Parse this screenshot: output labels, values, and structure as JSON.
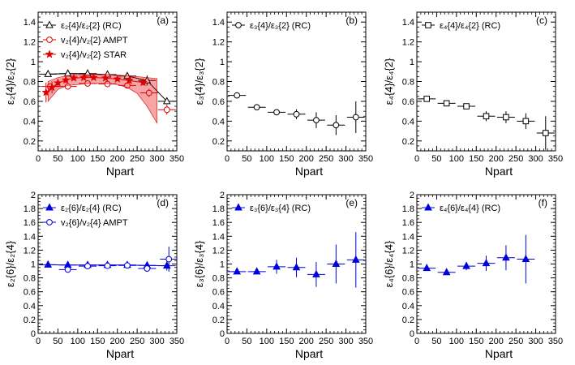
{
  "figure": {
    "background": "#ffffff"
  },
  "chart_data": [
    {
      "id": "a",
      "type": "scatter",
      "panel_label": "(a)",
      "xlabel": "Npart",
      "ylabel": "ε₂{4}/ε₂{2}",
      "xlim": [
        0,
        350
      ],
      "ylim": [
        0.1,
        1.5
      ],
      "xticks": [
        0,
        50,
        100,
        150,
        200,
        250,
        300,
        350
      ],
      "yticks": [
        0.2,
        0.4,
        0.6,
        0.8,
        1.0,
        1.2,
        1.4
      ],
      "ytick_labels": [
        "0.2",
        "0.4",
        "0.6",
        "0.8",
        "1",
        "1.2",
        "1.4"
      ],
      "grid": false,
      "legend_position": "top-left",
      "series": [
        {
          "name": "ε₂{4}/ε₂{2} (RC)",
          "color": "#000000",
          "marker": "triangle-open",
          "line": true,
          "x": [
            25,
            75,
            125,
            175,
            225,
            275,
            325
          ],
          "y": [
            0.875,
            0.88,
            0.88,
            0.87,
            0.855,
            0.81,
            0.6
          ],
          "yerr": [
            0.02,
            0.015,
            0.015,
            0.02,
            0.03,
            0.05,
            0.03
          ]
        },
        {
          "name": "v₂{4}/v₂{2}  AMPT",
          "color": "#e00000",
          "marker": "circle-open",
          "line": false,
          "x": [
            30,
            75,
            125,
            175,
            225,
            280,
            325
          ],
          "y": [
            0.75,
            0.75,
            0.78,
            0.775,
            0.76,
            0.685,
            0.515
          ],
          "yerr": [
            0.02,
            0.02,
            0.02,
            0.02,
            0.02,
            0.04,
            0.05
          ]
        },
        {
          "name": "v₂{4}/v₂{2}  STAR",
          "color": "#e00000",
          "marker": "star",
          "line": true,
          "x": [
            20,
            35,
            50,
            70,
            90,
            115,
            140,
            170,
            200,
            230,
            265
          ],
          "y": [
            0.69,
            0.74,
            0.785,
            0.815,
            0.835,
            0.84,
            0.84,
            0.835,
            0.825,
            0.81,
            0.79
          ],
          "yerr": [
            0.1,
            0.06,
            0.04,
            0.03,
            0.02,
            0.02,
            0.02,
            0.02,
            0.02,
            0.02,
            0.03
          ],
          "sys_band": {
            "x": [
              25,
              50,
              75,
              100,
              125,
              150,
              175,
              200,
              225,
              250,
              275,
              300
            ],
            "low": [
              0.6,
              0.72,
              0.76,
              0.77,
              0.78,
              0.78,
              0.78,
              0.77,
              0.74,
              0.68,
              0.55,
              0.38
            ],
            "high": [
              0.8,
              0.84,
              0.86,
              0.87,
              0.87,
              0.87,
              0.87,
              0.86,
              0.86,
              0.85,
              0.84,
              0.83
            ]
          }
        }
      ]
    },
    {
      "id": "b",
      "type": "scatter",
      "panel_label": "(b)",
      "xlabel": "Npart",
      "ylabel": "ε₃{4}/ε₃{2}",
      "xlim": [
        0,
        350
      ],
      "ylim": [
        0.1,
        1.5
      ],
      "xticks": [
        0,
        50,
        100,
        150,
        200,
        250,
        300,
        350
      ],
      "yticks": [
        0.2,
        0.4,
        0.6,
        0.8,
        1.0,
        1.2,
        1.4
      ],
      "ytick_labels": [
        "0.2",
        "0.4",
        "0.6",
        "0.8",
        "1",
        "1.2",
        "1.4"
      ],
      "grid": false,
      "legend_position": "top-left",
      "series": [
        {
          "name": "ε₃{4}/ε₃{2} (RC)",
          "color": "#000000",
          "marker": "circle-open",
          "line": false,
          "x": [
            25,
            75,
            125,
            175,
            225,
            275,
            325
          ],
          "y": [
            0.66,
            0.54,
            0.49,
            0.47,
            0.41,
            0.36,
            0.44
          ],
          "yerr": [
            0.02,
            0.02,
            0.03,
            0.05,
            0.08,
            0.1,
            0.16
          ]
        }
      ]
    },
    {
      "id": "c",
      "type": "scatter",
      "panel_label": "(c)",
      "xlabel": "Npart",
      "ylabel": "ε₄{4}/ε₄{2}",
      "xlim": [
        0,
        350
      ],
      "ylim": [
        0.1,
        1.5
      ],
      "xticks": [
        0,
        50,
        100,
        150,
        200,
        250,
        300,
        350
      ],
      "yticks": [
        0.2,
        0.4,
        0.6,
        0.8,
        1.0,
        1.2,
        1.4
      ],
      "ytick_labels": [
        "0.2",
        "0.4",
        "0.6",
        "0.8",
        "1",
        "1.2",
        "1.4"
      ],
      "grid": false,
      "legend_position": "top-left",
      "series": [
        {
          "name": "ε₄{4}/ε₄{2} (RC)",
          "color": "#000000",
          "marker": "square-open",
          "line": false,
          "x": [
            25,
            75,
            125,
            175,
            225,
            275,
            325
          ],
          "y": [
            0.625,
            0.58,
            0.55,
            0.45,
            0.44,
            0.4,
            0.28
          ],
          "yerr": [
            0.02,
            0.02,
            0.02,
            0.05,
            0.06,
            0.08,
            0.17
          ]
        }
      ]
    },
    {
      "id": "d",
      "type": "scatter",
      "panel_label": "(d)",
      "xlabel": "Npart",
      "ylabel": "ε₂{6}/ε₂{4}",
      "xlim": [
        0,
        350
      ],
      "ylim": [
        0,
        2
      ],
      "xticks": [
        0,
        50,
        100,
        150,
        200,
        250,
        300,
        350
      ],
      "yticks": [
        0,
        0.2,
        0.4,
        0.6,
        0.8,
        1.0,
        1.2,
        1.4,
        1.6,
        1.8,
        2.0
      ],
      "ytick_labels": [
        "0",
        "0.2",
        "0.4",
        "0.6",
        "0.8",
        "1",
        "1.2",
        "1.4",
        "1.6",
        "1.8",
        "2"
      ],
      "grid": false,
      "legend_position": "top-left",
      "series": [
        {
          "name": "ε₂{6}/ε₂{4} (RC)",
          "color": "#0000dd",
          "marker": "triangle-filled",
          "line": true,
          "x": [
            25,
            75,
            125,
            175,
            225,
            275,
            325
          ],
          "y": [
            0.99,
            0.985,
            0.985,
            0.985,
            0.985,
            0.98,
            0.975
          ],
          "yerr": [
            0.01,
            0.01,
            0.01,
            0.01,
            0.02,
            0.03,
            0.07
          ]
        },
        {
          "name": "v₂{6}/v₂{4}  AMPT",
          "color": "#0000dd",
          "marker": "circle-open",
          "line": false,
          "x": [
            75,
            125,
            175,
            225,
            275,
            330
          ],
          "y": [
            0.92,
            0.97,
            0.975,
            0.98,
            0.935,
            1.07
          ],
          "yerr": [
            0.03,
            0.02,
            0.02,
            0.02,
            0.03,
            0.18
          ]
        }
      ]
    },
    {
      "id": "e",
      "type": "scatter",
      "panel_label": "(e)",
      "xlabel": "Npart",
      "ylabel": "ε₃{6}/ε₃{4}",
      "xlim": [
        0,
        350
      ],
      "ylim": [
        0,
        2
      ],
      "xticks": [
        0,
        50,
        100,
        150,
        200,
        250,
        300,
        350
      ],
      "yticks": [
        0,
        0.2,
        0.4,
        0.6,
        0.8,
        1.0,
        1.2,
        1.4,
        1.6,
        1.8,
        2.0
      ],
      "ytick_labels": [
        "0",
        "0.2",
        "0.4",
        "0.6",
        "0.8",
        "1",
        "1.2",
        "1.4",
        "1.6",
        "1.8",
        "2"
      ],
      "grid": false,
      "legend_position": "top-left",
      "series": [
        {
          "name": "ε₃{6}/ε₃{4} (RC)",
          "color": "#0000dd",
          "marker": "triangle-filled",
          "line": false,
          "x": [
            25,
            75,
            125,
            175,
            225,
            275,
            325
          ],
          "y": [
            0.89,
            0.89,
            0.96,
            0.95,
            0.85,
            1.0,
            1.06
          ],
          "yerr": [
            0.02,
            0.04,
            0.1,
            0.14,
            0.18,
            0.28,
            0.4
          ]
        }
      ]
    },
    {
      "id": "f",
      "type": "scatter",
      "panel_label": "(f)",
      "xlabel": "Npart",
      "ylabel": "ε₄{6}/ε₄{4}",
      "xlim": [
        0,
        350
      ],
      "ylim": [
        0,
        2
      ],
      "xticks": [
        0,
        50,
        100,
        150,
        200,
        250,
        300,
        350
      ],
      "yticks": [
        0,
        0.2,
        0.4,
        0.6,
        0.8,
        1.0,
        1.2,
        1.4,
        1.6,
        1.8,
        2.0
      ],
      "ytick_labels": [
        "0",
        "0.2",
        "0.4",
        "0.6",
        "0.8",
        "1",
        "1.2",
        "1.4",
        "1.6",
        "1.8",
        "2"
      ],
      "grid": false,
      "legend_position": "top-left",
      "series": [
        {
          "name": "ε₄{6}/ε₄{4} (RC)",
          "color": "#0000dd",
          "marker": "triangle-filled",
          "line": false,
          "x": [
            25,
            75,
            125,
            175,
            225,
            275
          ],
          "y": [
            0.94,
            0.88,
            0.97,
            1.01,
            1.09,
            1.07
          ],
          "yerr": [
            0.02,
            0.03,
            0.06,
            0.11,
            0.18,
            0.35
          ]
        }
      ]
    }
  ]
}
